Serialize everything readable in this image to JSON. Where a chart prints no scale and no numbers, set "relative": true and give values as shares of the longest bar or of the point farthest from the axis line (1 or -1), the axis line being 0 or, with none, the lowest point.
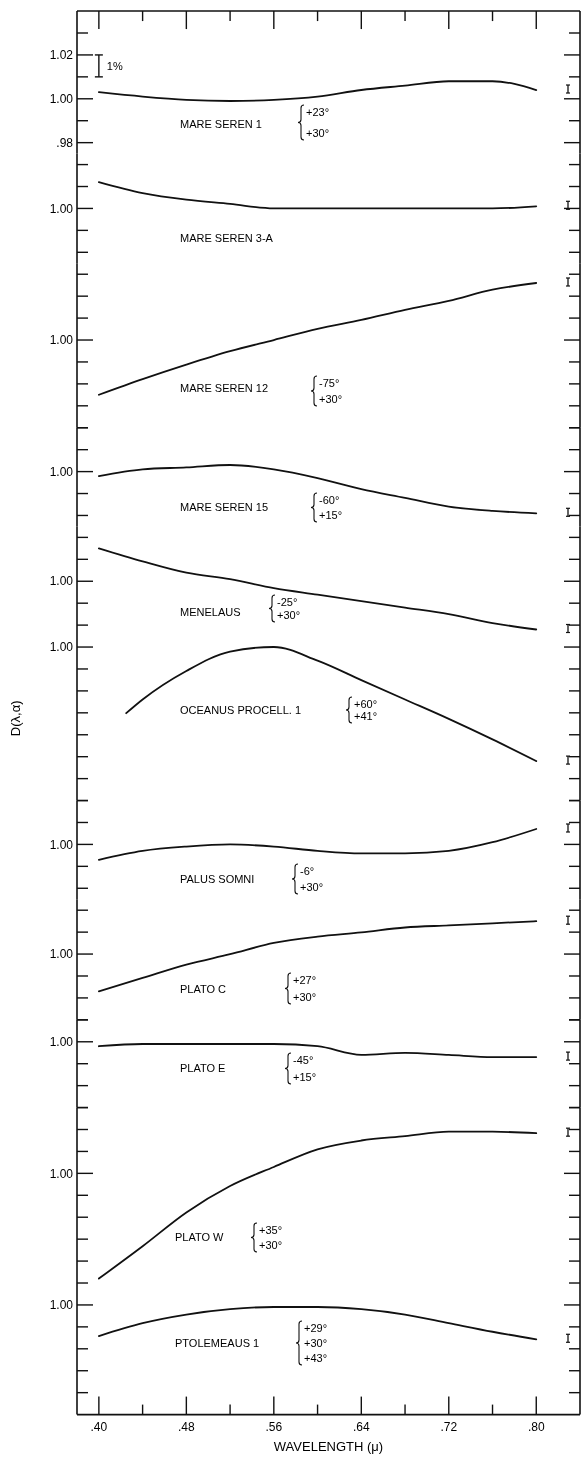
{
  "chart_data": [
    {
      "type": "line",
      "tick_labels": "y",
      "line_style": "solid",
      "xlim": [
        0.38,
        0.84
      ],
      "xticks": [
        {
          "value": 0.4,
          "label": null
        },
        {
          "value": 0.44,
          "label": null
        },
        {
          "value": 0.48,
          "label": null
        },
        {
          "value": 0.52,
          "label": null
        },
        {
          "value": 0.56,
          "label": null
        },
        {
          "value": 0.6,
          "label": null
        },
        {
          "value": 0.64,
          "label": null
        },
        {
          "value": 0.68,
          "label": null
        },
        {
          "value": 0.72,
          "label": null
        },
        {
          "value": 0.76,
          "label": null
        },
        {
          "value": 0.8,
          "label": null
        }
      ],
      "ylim": [
        0.975,
        1.04
      ],
      "yticks": [
        {
          "value": 1.03,
          "label": null
        },
        1.02,
        {
          "value": 1.01,
          "label": null
        },
        {
          "value": 1,
          "label": "1.00"
        },
        {
          "value": 0.99,
          "label": null
        },
        {
          "value": 0.98,
          "label": ".98"
        }
      ],
      "x": [
        0.4,
        0.44,
        0.48,
        0.52,
        0.56,
        0.6,
        0.64,
        0.68,
        0.72,
        0.76,
        0.8
      ],
      "series": [
        {
          "name": "MARE SEREN 1",
          "color": "#111111",
          "values": [
            1.003,
            1.001,
            0.9995,
            0.999,
            0.9995,
            1.001,
            1.004,
            1.006,
            1.008,
            1.008,
            1.004
          ]
        }
      ],
      "annotations": [
        "1%",
        "+23°",
        "+30°"
      ]
    },
    {
      "type": "line",
      "relative": true,
      "tick_labels": false,
      "line_style": "solid",
      "xlim": [
        0.38,
        0.84
      ],
      "x": [
        0.4,
        0.44,
        0.48,
        0.52,
        0.56,
        0.6,
        0.64,
        0.68,
        0.72,
        0.76,
        0.8
      ],
      "series": [
        {
          "name": "MARE SEREN 3-A",
          "color": "#111111",
          "values": [
            1,
            0.58,
            0.33,
            0.17,
            0,
            0,
            0,
            0,
            0,
            0,
            0.08
          ]
        }
      ],
      "annotations": [
        "1.00"
      ]
    },
    {
      "type": "line",
      "relative": true,
      "tick_labels": false,
      "line_style": "solid",
      "xlim": [
        0.38,
        0.84
      ],
      "x": [
        0.4,
        0.44,
        0.48,
        0.52,
        0.56,
        0.6,
        0.64,
        0.68,
        0.72,
        0.76,
        0.8
      ],
      "series": [
        {
          "name": "MARE SEREN 12",
          "color": "#111111",
          "values": [
            0,
            0.14,
            0.27,
            0.39,
            0.49,
            0.59,
            0.67,
            0.76,
            0.84,
            0.94,
            1
          ]
        }
      ],
      "annotations": [
        "1.00",
        "-75°",
        "+30°"
      ]
    },
    {
      "type": "line",
      "relative": true,
      "tick_labels": false,
      "line_style": "solid",
      "xlim": [
        0.38,
        0.84
      ],
      "x": [
        0.4,
        0.44,
        0.48,
        0.52,
        0.56,
        0.6,
        0.64,
        0.68,
        0.72,
        0.76,
        0.8
      ],
      "series": [
        {
          "name": "MARE SEREN 15",
          "color": "#111111",
          "values": [
            0.77,
            0.91,
            0.95,
            1,
            0.91,
            0.73,
            0.5,
            0.32,
            0.14,
            0.05,
            0
          ]
        }
      ],
      "annotations": [
        "1.00",
        "-60°",
        "+15°"
      ]
    },
    {
      "type": "line",
      "relative": true,
      "tick_labels": false,
      "line_style": "solid",
      "xlim": [
        0.38,
        0.84
      ],
      "x": [
        0.4,
        0.44,
        0.48,
        0.52,
        0.56,
        0.6,
        0.64,
        0.68,
        0.72,
        0.76,
        0.8
      ],
      "series": [
        {
          "name": "MENELAUS",
          "color": "#111111",
          "values": [
            1,
            0.84,
            0.7,
            0.62,
            0.51,
            0.43,
            0.35,
            0.27,
            0.19,
            0.08,
            0
          ]
        }
      ],
      "annotations": [
        "1.00",
        "-25°",
        "+30°"
      ]
    },
    {
      "type": "line",
      "relative": true,
      "tick_labels": false,
      "line_style": "solid",
      "ylabel": "D(λ,α)",
      "xlim": [
        0.38,
        0.84
      ],
      "x": [
        0.425,
        0.44,
        0.48,
        0.52,
        0.56,
        0.6,
        0.64,
        0.68,
        0.72,
        0.76,
        0.8
      ],
      "series": [
        {
          "name": "OCEANUS PROCELL. 1",
          "color": "#111111",
          "values": [
            0.42,
            0.54,
            0.79,
            0.96,
            1,
            0.88,
            0.71,
            0.54,
            0.37,
            0.19,
            0
          ]
        }
      ],
      "annotations": [
        "1.00",
        "+60°",
        "+41°"
      ]
    },
    {
      "type": "line",
      "relative": true,
      "tick_labels": false,
      "line_style": "solid",
      "xlim": [
        0.38,
        0.84
      ],
      "x": [
        0.4,
        0.44,
        0.48,
        0.52,
        0.56,
        0.6,
        0.64,
        0.68,
        0.72,
        0.76,
        0.8
      ],
      "series": [
        {
          "name": "PALUS SOMNI",
          "color": "#111111",
          "values": [
            0,
            0.29,
            0.43,
            0.5,
            0.43,
            0.29,
            0.21,
            0.21,
            0.29,
            0.57,
            1
          ]
        }
      ],
      "annotations": [
        "1.00",
        "-6°",
        "+30°"
      ]
    },
    {
      "type": "line",
      "relative": true,
      "tick_labels": false,
      "line_style": "solid",
      "xlim": [
        0.38,
        0.84
      ],
      "x": [
        0.4,
        0.44,
        0.48,
        0.52,
        0.56,
        0.6,
        0.64,
        0.68,
        0.72,
        0.76,
        0.8
      ],
      "series": [
        {
          "name": "PLATO C",
          "color": "#111111",
          "values": [
            0,
            0.19,
            0.38,
            0.53,
            0.69,
            0.78,
            0.84,
            0.91,
            0.94,
            0.97,
            1
          ]
        }
      ],
      "annotations": [
        "1.00",
        "+27°",
        "+30°"
      ]
    },
    {
      "type": "line",
      "relative": true,
      "tick_labels": false,
      "line_style": "solid",
      "xlim": [
        0.38,
        0.84
      ],
      "x": [
        0.4,
        0.44,
        0.48,
        0.52,
        0.56,
        0.6,
        0.64,
        0.68,
        0.72,
        0.76,
        0.8
      ],
      "series": [
        {
          "name": "PLATO E",
          "color": "#111111",
          "values": [
            0.83,
            1,
            1,
            1,
            1,
            0.83,
            0.17,
            0.33,
            0.17,
            0,
            0
          ]
        }
      ],
      "annotations": [
        "1.00",
        "-45°",
        "+15°"
      ]
    },
    {
      "type": "line",
      "relative": true,
      "tick_labels": false,
      "line_style": "solid",
      "xlim": [
        0.38,
        0.84
      ],
      "x": [
        0.4,
        0.44,
        0.48,
        0.52,
        0.56,
        0.6,
        0.64,
        0.68,
        0.72,
        0.76,
        0.8
      ],
      "series": [
        {
          "name": "PLATO W",
          "color": "#111111",
          "values": [
            0,
            0.22,
            0.45,
            0.63,
            0.76,
            0.88,
            0.94,
            0.97,
            1,
            1,
            0.99
          ]
        }
      ],
      "annotations": [
        "1.00",
        "+35°",
        "+30°"
      ]
    },
    {
      "type": "line",
      "relative": true,
      "tick_labels": "x",
      "line_style": "solid",
      "xlabel": "WAVELENGTH (μ)",
      "xlim": [
        0.38,
        0.84
      ],
      "xticks": [
        {
          "value": 0.4,
          "label": ".40"
        },
        {
          "value": 0.48,
          "label": ".48"
        },
        {
          "value": 0.56,
          "label": ".56"
        },
        {
          "value": 0.64,
          "label": ".64"
        },
        {
          "value": 0.72,
          "label": ".72"
        },
        {
          "value": 0.8,
          "label": ".80"
        }
      ],
      "x": [
        0.4,
        0.44,
        0.48,
        0.52,
        0.56,
        0.6,
        0.64,
        0.68,
        0.72,
        0.76,
        0.8
      ],
      "series": [
        {
          "name": "PTOLEMEAUS 1",
          "color": "#111111",
          "values": [
            0.73,
            0.85,
            0.93,
            0.98,
            1,
            1,
            0.98,
            0.93,
            0.85,
            0.77,
            0.7
          ]
        }
      ],
      "annotations": [
        "1.00",
        "+29°",
        "+30°",
        "+43°"
      ]
    }
  ]
}
